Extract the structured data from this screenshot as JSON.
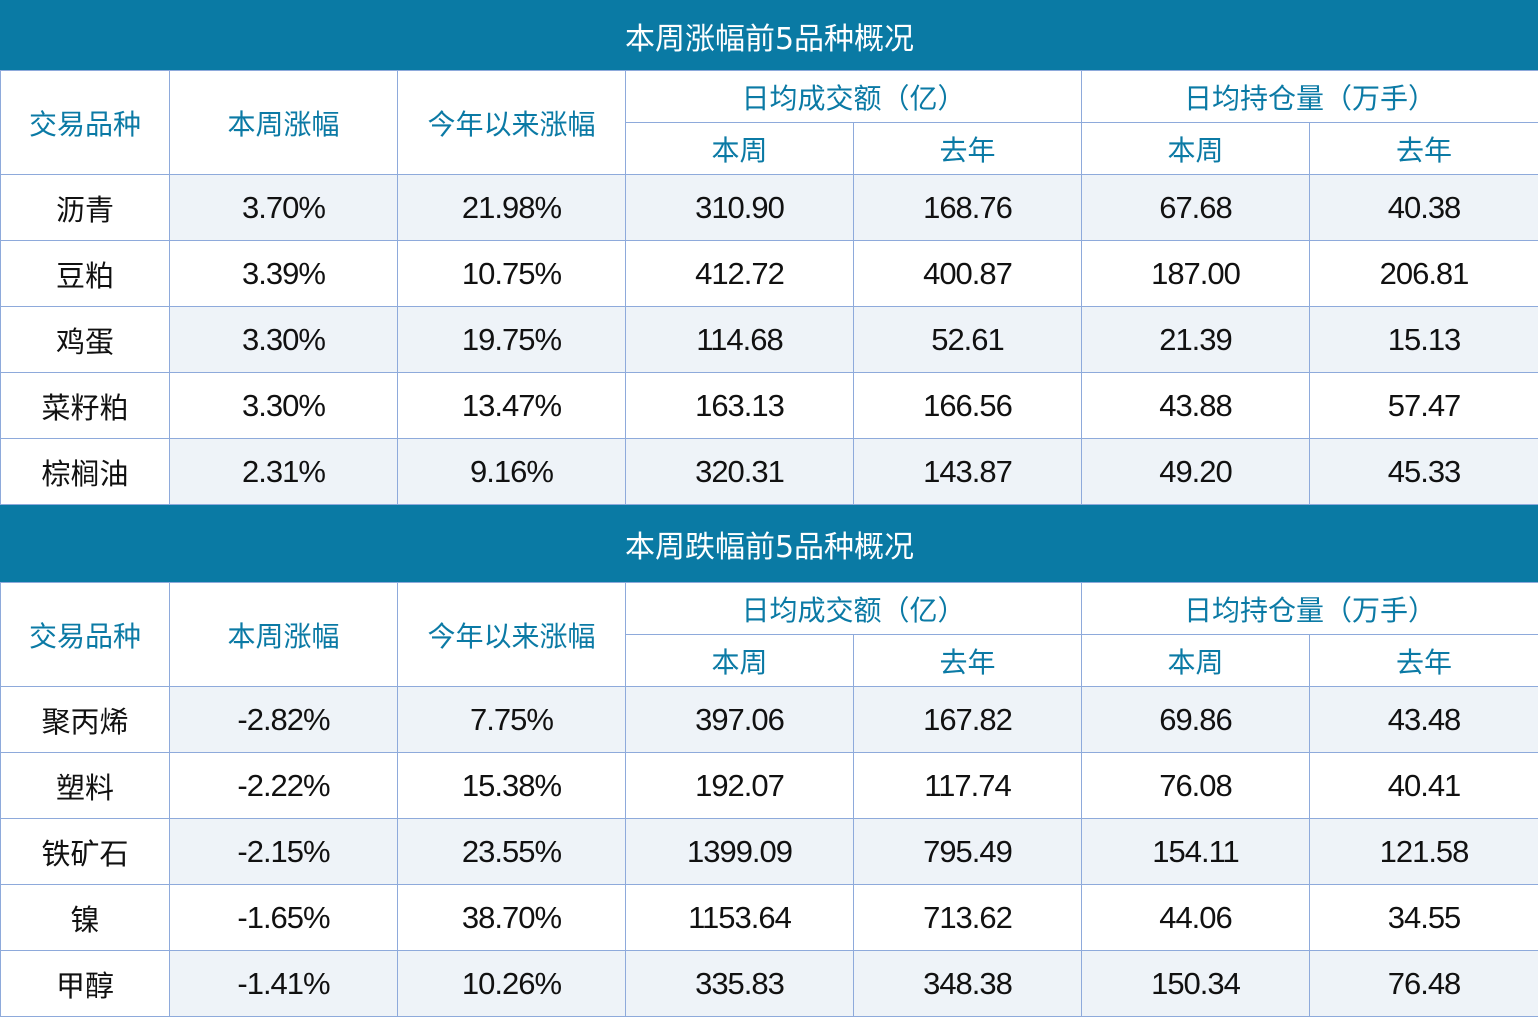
{
  "tables": [
    {
      "title": "本周涨幅前5品种概况",
      "headers": {
        "variety": "交易品种",
        "week_change": "本周涨幅",
        "ytd_change": "今年以来涨幅",
        "turnover_group": "日均成交额（亿）",
        "open_interest_group": "日均持仓量（万手）",
        "this_week": "本周",
        "last_year": "去年"
      },
      "rows": [
        {
          "variety": "沥青",
          "week_change": "3.70%",
          "ytd_change": "21.98%",
          "turnover_week": "310.90",
          "turnover_last_year": "168.76",
          "oi_week": "67.68",
          "oi_last_year": "40.38"
        },
        {
          "variety": "豆粕",
          "week_change": "3.39%",
          "ytd_change": "10.75%",
          "turnover_week": "412.72",
          "turnover_last_year": "400.87",
          "oi_week": "187.00",
          "oi_last_year": "206.81"
        },
        {
          "variety": "鸡蛋",
          "week_change": "3.30%",
          "ytd_change": "19.75%",
          "turnover_week": "114.68",
          "turnover_last_year": "52.61",
          "oi_week": "21.39",
          "oi_last_year": "15.13"
        },
        {
          "variety": "菜籽粕",
          "week_change": "3.30%",
          "ytd_change": "13.47%",
          "turnover_week": "163.13",
          "turnover_last_year": "166.56",
          "oi_week": "43.88",
          "oi_last_year": "57.47"
        },
        {
          "variety": "棕榈油",
          "week_change": "2.31%",
          "ytd_change": "9.16%",
          "turnover_week": "320.31",
          "turnover_last_year": "143.87",
          "oi_week": "49.20",
          "oi_last_year": "45.33"
        }
      ]
    },
    {
      "title": "本周跌幅前5品种概况",
      "headers": {
        "variety": "交易品种",
        "week_change": "本周涨幅",
        "ytd_change": "今年以来涨幅",
        "turnover_group": "日均成交额（亿）",
        "open_interest_group": "日均持仓量（万手）",
        "this_week": "本周",
        "last_year": "去年"
      },
      "rows": [
        {
          "variety": "聚丙烯",
          "week_change": "-2.82%",
          "ytd_change": "7.75%",
          "turnover_week": "397.06",
          "turnover_last_year": "167.82",
          "oi_week": "69.86",
          "oi_last_year": "43.48"
        },
        {
          "variety": "塑料",
          "week_change": "-2.22%",
          "ytd_change": "15.38%",
          "turnover_week": "192.07",
          "turnover_last_year": "117.74",
          "oi_week": "76.08",
          "oi_last_year": "40.41"
        },
        {
          "variety": "铁矿石",
          "week_change": "-2.15%",
          "ytd_change": "23.55%",
          "turnover_week": "1399.09",
          "turnover_last_year": "795.49",
          "oi_week": "154.11",
          "oi_last_year": "121.58"
        },
        {
          "variety": "镍",
          "week_change": "-1.65%",
          "ytd_change": "38.70%",
          "turnover_week": "1153.64",
          "turnover_last_year": "713.62",
          "oi_week": "44.06",
          "oi_last_year": "34.55"
        },
        {
          "variety": "甲醇",
          "week_change": "-1.41%",
          "ytd_change": "10.26%",
          "turnover_week": "335.83",
          "turnover_last_year": "348.38",
          "oi_week": "150.34",
          "oi_last_year": "76.48"
        }
      ]
    }
  ],
  "colors": {
    "title_background": "#0a7aa4",
    "title_text": "#ffffff",
    "header_text": "#0b7aa5",
    "border": "#8eaadb",
    "stripe_background": "#eef3f8",
    "body_text": "#111111"
  }
}
